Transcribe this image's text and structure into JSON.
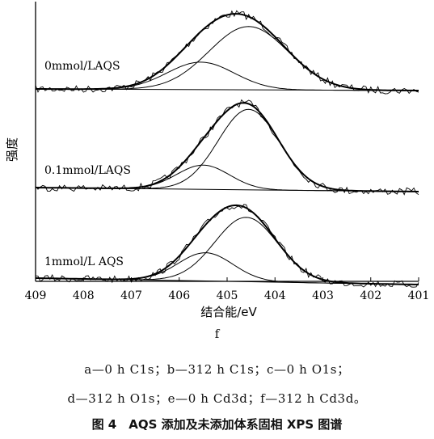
{
  "chart_data": {
    "type": "line",
    "title": "",
    "xlabel": "结合能/eV",
    "ylabel": "强度",
    "x_ticks": [
      409,
      408,
      407,
      406,
      405,
      404,
      403,
      402,
      401
    ],
    "xlim": [
      409,
      401
    ],
    "x_reversed": true,
    "grid": false,
    "panel_label": "f",
    "panels": [
      {
        "label": "0mmol/LAQS",
        "raw_peak_x": 404.7,
        "raw_peak_y": 1.0,
        "components": [
          {
            "center": 404.55,
            "height": 0.76,
            "fwhm": 1.95
          },
          {
            "center": 405.55,
            "height": 0.33,
            "fwhm": 1.65
          }
        ]
      },
      {
        "label": "0.1mmol/LAQS",
        "raw_peak_x": 404.6,
        "raw_peak_y": 1.0,
        "components": [
          {
            "center": 404.55,
            "height": 0.93,
            "fwhm": 1.5
          },
          {
            "center": 405.5,
            "height": 0.28,
            "fwhm": 1.3
          }
        ]
      },
      {
        "label": "1mmol/L AQS",
        "raw_peak_x": 404.6,
        "raw_peak_y": 1.0,
        "components": [
          {
            "center": 404.6,
            "height": 0.82,
            "fwhm": 1.55
          },
          {
            "center": 405.45,
            "height": 0.36,
            "fwhm": 1.35
          }
        ]
      }
    ]
  },
  "caption": {
    "panel": "f",
    "line1": "a—0 h C1s；b—312 h C1s；c—0 h O1s；",
    "line2": "d—312 h O1s；e—0 h Cd3d；f—312 h Cd3d。",
    "title": "图 4　AQS 添加及未添加体系固相 XPS 图谱"
  }
}
